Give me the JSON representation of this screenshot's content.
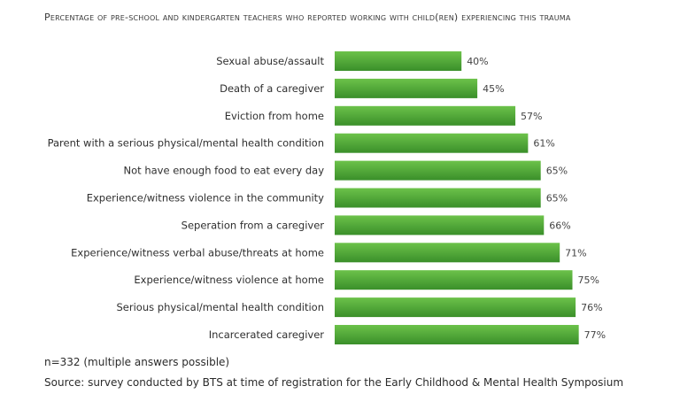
{
  "header": {
    "title": "Percentage of pre-school and kindergarten teachers who reported working with child(ren) experiencing this trauma"
  },
  "chart_data": {
    "type": "bar",
    "orientation": "horizontal",
    "title": "Percentage of pre-school and kindergarten teachers who reported working with child(ren) experiencing this trauma",
    "categories": [
      "Sexual abuse/assault",
      "Death of a caregiver",
      "Eviction from home",
      "Parent with a serious physical/mental health condition",
      "Not have enough food to eat every day",
      "Experience/witness violence in the community",
      "Seperation from a caregiver",
      "Experience/witness verbal abuse/threats at home",
      "Experience/witness violence at home",
      "Serious physical/mental health condition",
      "Incarcerated caregiver"
    ],
    "values": [
      40,
      45,
      57,
      61,
      65,
      65,
      66,
      71,
      75,
      76,
      77
    ],
    "value_labels": [
      "40%",
      "45%",
      "57%",
      "61%",
      "65%",
      "65%",
      "66%",
      "71%",
      "75%",
      "76%",
      "77%"
    ],
    "unit": "%",
    "xlim": [
      0,
      100
    ],
    "grid": false,
    "legend": "none",
    "colors": {
      "bar_dark": "#3a8f2a",
      "bar_light": "#6cc24a"
    }
  },
  "footer": {
    "sample_note": "n=332 (multiple answers possible)",
    "source_note": "Source: survey conducted by BTS at time of registration for the Early Childhood & Mental Health Symposium"
  }
}
